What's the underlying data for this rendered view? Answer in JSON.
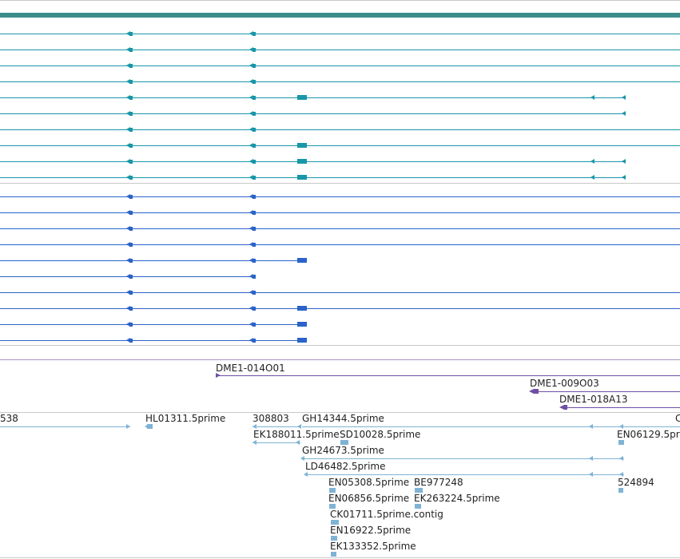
{
  "colors": {
    "teal_band": "#3c8c8c",
    "teal_track": "#1797a8",
    "blue_track": "#2a63c9",
    "purple_track": "#6e4fa3",
    "est_track": "#7fb3d5",
    "divider": "#c8c8c8"
  },
  "tracks": {
    "transcripts_teal": [
      {
        "id": "t1"
      },
      {
        "id": "t2"
      },
      {
        "id": "t3"
      },
      {
        "id": "t4"
      },
      {
        "id": "t5"
      },
      {
        "id": "t6"
      },
      {
        "id": "t7"
      },
      {
        "id": "t8"
      },
      {
        "id": "t9"
      },
      {
        "id": "t10"
      }
    ],
    "transcripts_blue": [
      {
        "id": "b1"
      },
      {
        "id": "b2"
      },
      {
        "id": "b3"
      },
      {
        "id": "b4"
      },
      {
        "id": "b5"
      },
      {
        "id": "b6"
      },
      {
        "id": "b7"
      },
      {
        "id": "b8"
      },
      {
        "id": "b9"
      },
      {
        "id": "b10"
      }
    ],
    "clones": [
      {
        "label": "DME1-014O01"
      },
      {
        "label": "DME1-009O03"
      },
      {
        "label": "DME1-018A13"
      }
    ],
    "ests": [
      {
        "label": "538"
      },
      {
        "label": "HL01311.5prime"
      },
      {
        "label": "308803"
      },
      {
        "label": "GH14344.5prime"
      },
      {
        "label": "EK188011.5prime"
      },
      {
        "label": "SD10028.5prime"
      },
      {
        "label": "EN06129.5prime"
      },
      {
        "label": "GH24673.5prime"
      },
      {
        "label": "LD46482.5prime"
      },
      {
        "label": "EN05308.5prime"
      },
      {
        "label": "BE977248"
      },
      {
        "label": "524894"
      },
      {
        "label": "EN06856.5prime"
      },
      {
        "label": "EK263224.5prime"
      },
      {
        "label": "CK01711.5prime.contig"
      },
      {
        "label": "EN16922.5prime"
      },
      {
        "label": "EK133352.5prime"
      },
      {
        "label": "C"
      }
    ]
  }
}
